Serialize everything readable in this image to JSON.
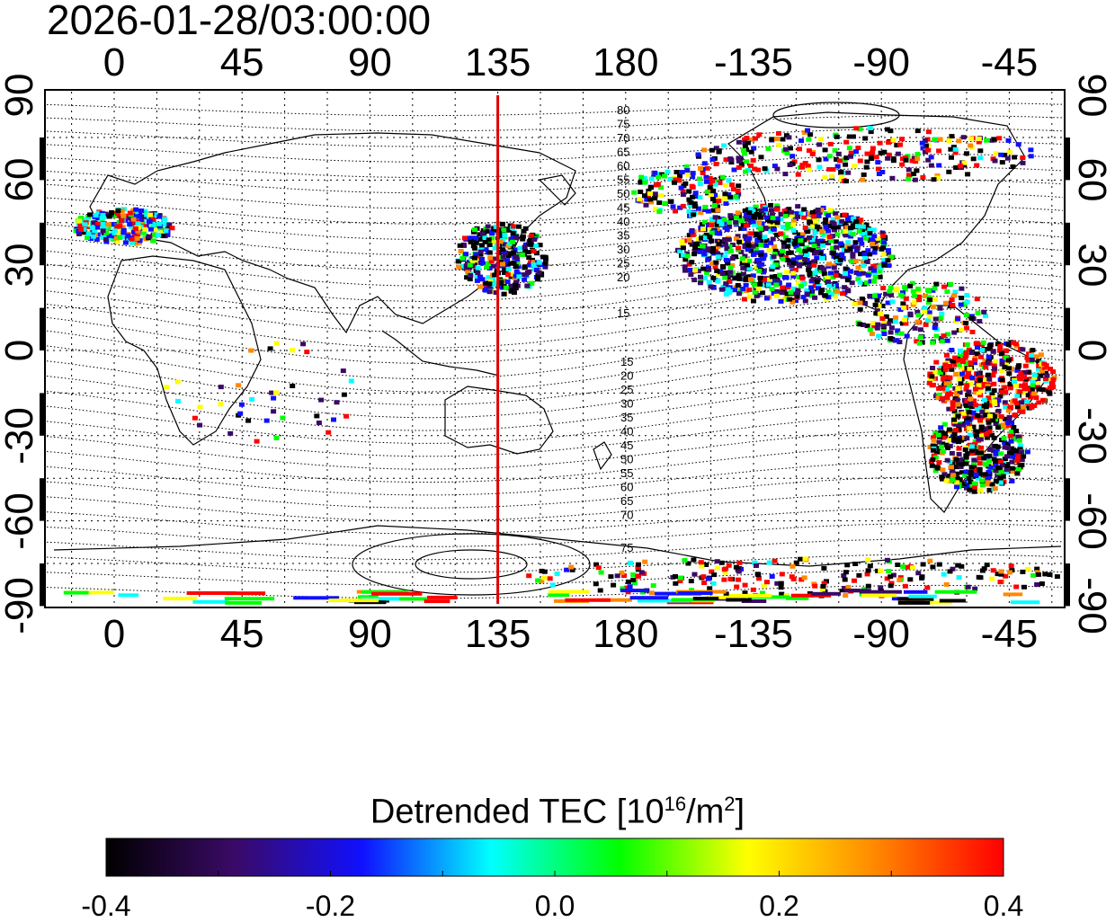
{
  "timestamp": "2026-01-28/03:00:00",
  "lon_labels_top": [
    "0",
    "45",
    "90",
    "135",
    "180",
    "-135",
    "-90",
    "-45"
  ],
  "lon_labels_bottom": [
    "0",
    "45",
    "90",
    "135",
    "180",
    "-135",
    "-90",
    "-45"
  ],
  "lat_labels_left": [
    "90",
    "60",
    "30",
    "0",
    "-30",
    "-60",
    "-90"
  ],
  "lat_labels_right": [
    "90",
    "60",
    "30",
    "0",
    "-30",
    "-60",
    "-90"
  ],
  "magnetic_lat_labels_north": [
    "80",
    "75",
    "70",
    "65",
    "60",
    "55",
    "50",
    "45",
    "40",
    "35",
    "30",
    "25",
    "20",
    "15"
  ],
  "magnetic_lat_labels_south": [
    "15",
    "20",
    "25",
    "30",
    "35",
    "40",
    "45",
    "50",
    "55",
    "60",
    "65",
    "70",
    "75"
  ],
  "meridian_marker_lon": 135,
  "colorbar": {
    "title_main": "Detrended TEC  [10",
    "title_exp1": "16",
    "title_mid": "/m",
    "title_exp2": "2",
    "title_end": "]",
    "min": -0.4,
    "max": 0.4,
    "tick_labels": [
      "-0.4",
      "-0.2",
      "0.0",
      "0.2",
      "0.4"
    ],
    "colors": [
      "#000000",
      "#3a0a66",
      "#1010ff",
      "#00ffff",
      "#00ff00",
      "#ffff00",
      "#ff8800",
      "#ff0000"
    ]
  },
  "colors": {
    "marker_line": "#e00000",
    "grid": "#000000"
  }
}
